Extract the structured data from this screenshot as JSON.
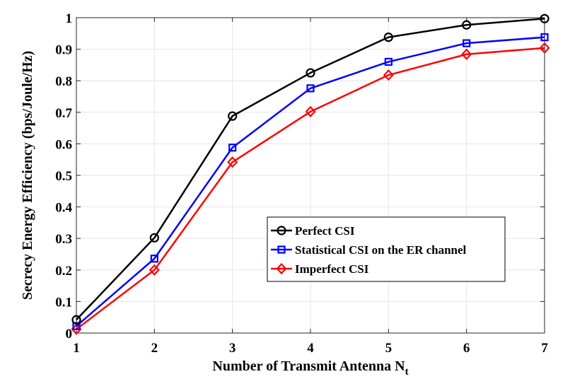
{
  "chart_data": {
    "type": "line",
    "title": "",
    "xlabel": "Number of Transmit Antenna N",
    "xlabel_subscript": "t",
    "ylabel": "Secrecy Energy Efficiency (bps/Joule/Hz)",
    "x": [
      1,
      2,
      3,
      4,
      5,
      6,
      7
    ],
    "xlim": [
      1,
      7
    ],
    "ylim": [
      0,
      1
    ],
    "xticks": [
      "1",
      "2",
      "3",
      "4",
      "5",
      "6",
      "7"
    ],
    "yticks": [
      "0",
      "0.1",
      "0.2",
      "0.3",
      "0.4",
      "0.5",
      "0.6",
      "0.7",
      "0.8",
      "0.9",
      "1"
    ],
    "grid": true,
    "legend_position": "lower-right",
    "series": [
      {
        "name": "Perfect CSI",
        "color": "#000000",
        "marker": "circle",
        "values": [
          0.042,
          0.302,
          0.688,
          0.825,
          0.938,
          0.977,
          0.997
        ]
      },
      {
        "name": "Statistical CSI on the ER channel",
        "color": "#0000ff",
        "marker": "square",
        "values": [
          0.022,
          0.236,
          0.588,
          0.776,
          0.86,
          0.919,
          0.938
        ]
      },
      {
        "name": "Imperfect CSI",
        "color": "#ff0000",
        "marker": "diamond",
        "values": [
          0.012,
          0.2,
          0.542,
          0.702,
          0.818,
          0.884,
          0.904
        ]
      }
    ]
  }
}
